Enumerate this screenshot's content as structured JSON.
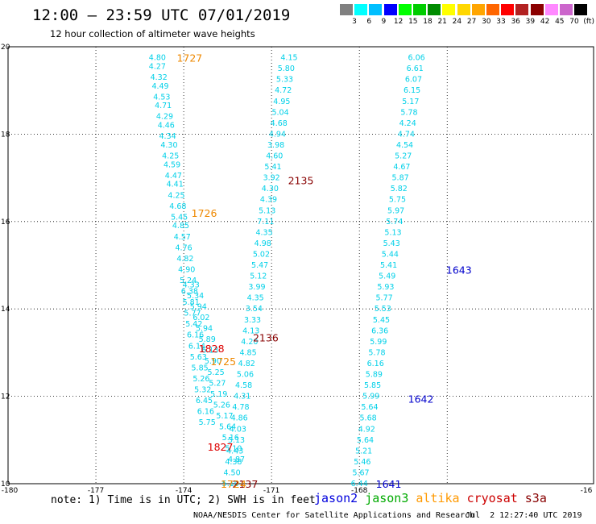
{
  "header": {
    "title": "12:00 – 23:59 UTC 07/01/2019",
    "subtitle": "12 hour collection of altimeter wave heights"
  },
  "color_scale": {
    "labels": [
      "3",
      "6",
      "9",
      "12",
      "15",
      "18",
      "21",
      "24",
      "27",
      "30",
      "33",
      "36",
      "39",
      "42",
      "45",
      "70",
      "(ft)"
    ],
    "colors": [
      "#808080",
      "#00ffff",
      "#00bfff",
      "#0000ff",
      "#00ff00",
      "#00cd00",
      "#008b00",
      "#ffff00",
      "#ffd700",
      "#ffa500",
      "#ff6600",
      "#ff0000",
      "#b22222",
      "#8b0000",
      "#ff88ff",
      "#cc66cc",
      "#000000"
    ]
  },
  "footer": {
    "note": "note: 1) Time is in UTC; 2) SWH is in feet",
    "credit": "NOAA/NESDIS Center for Satellite Applications and Research",
    "timestamp": "Jul  2 12:27:40 UTC 2019"
  },
  "legend": [
    {
      "name": "jason2",
      "color": "#0000dd"
    },
    {
      "name": "jason3",
      "color": "#00aa00"
    },
    {
      "name": "altika",
      "color": "#ff9900"
    },
    {
      "name": "cryosat",
      "color": "#cc0000"
    },
    {
      "name": "s3a",
      "color": "#880000"
    }
  ],
  "chart_data": {
    "type": "scatter",
    "x_ticks": [
      "-180",
      "-177",
      "-174",
      "-171",
      "-168",
      "-16"
    ],
    "y_ticks": [
      "20",
      "18",
      "16",
      "14",
      "12",
      "10"
    ],
    "xlim": [
      -180,
      -160
    ],
    "ylim": [
      10,
      20
    ],
    "grid": true,
    "series": [
      {
        "name": "track-west",
        "color": "#00d0e8",
        "points": [
          {
            "x": -174.9,
            "y": 19.75,
            "v": "4.80"
          },
          {
            "x": -174.9,
            "y": 19.55,
            "v": "4.27"
          },
          {
            "x": -174.85,
            "y": 19.3,
            "v": "4.32"
          },
          {
            "x": -174.8,
            "y": 19.1,
            "v": "4.49"
          },
          {
            "x": -174.75,
            "y": 18.85,
            "v": "4.53"
          },
          {
            "x": -174.7,
            "y": 18.65,
            "v": "4.71"
          },
          {
            "x": -174.65,
            "y": 18.4,
            "v": "4.29"
          },
          {
            "x": -174.6,
            "y": 18.2,
            "v": "4.46"
          },
          {
            "x": -174.55,
            "y": 17.95,
            "v": "4.34"
          },
          {
            "x": -174.5,
            "y": 17.75,
            "v": "4.30"
          },
          {
            "x": -174.45,
            "y": 17.5,
            "v": "4.25"
          },
          {
            "x": -174.4,
            "y": 17.3,
            "v": "4.59"
          },
          {
            "x": -174.35,
            "y": 17.05,
            "v": "4.47"
          },
          {
            "x": -174.3,
            "y": 16.85,
            "v": "4.41"
          },
          {
            "x": -174.25,
            "y": 16.6,
            "v": "4.25"
          },
          {
            "x": -174.2,
            "y": 16.35,
            "v": "4.68"
          },
          {
            "x": -174.15,
            "y": 16.1,
            "v": "5.45"
          },
          {
            "x": -174.1,
            "y": 15.9,
            "v": "4.85"
          },
          {
            "x": -174.05,
            "y": 15.65,
            "v": "4.57"
          },
          {
            "x": -174.0,
            "y": 15.4,
            "v": "4.76"
          },
          {
            "x": -173.95,
            "y": 15.15,
            "v": "4.82"
          },
          {
            "x": -173.9,
            "y": 14.9,
            "v": "4.90"
          },
          {
            "x": -173.85,
            "y": 14.65,
            "v": "5.24"
          },
          {
            "x": -173.8,
            "y": 14.4,
            "v": "6.38"
          },
          {
            "x": -173.75,
            "y": 14.15,
            "v": "5.81"
          },
          {
            "x": -173.7,
            "y": 13.9,
            "v": "5.77"
          },
          {
            "x": -173.65,
            "y": 13.65,
            "v": "5.42"
          },
          {
            "x": -173.6,
            "y": 13.4,
            "v": "6.16"
          },
          {
            "x": -173.55,
            "y": 13.15,
            "v": "6.14"
          },
          {
            "x": -173.5,
            "y": 12.9,
            "v": "5.63"
          },
          {
            "x": -173.45,
            "y": 12.65,
            "v": "5.85"
          },
          {
            "x": -173.4,
            "y": 12.4,
            "v": "5.26"
          },
          {
            "x": -173.35,
            "y": 12.15,
            "v": "5.32"
          },
          {
            "x": -173.3,
            "y": 11.9,
            "v": "6.45"
          },
          {
            "x": -173.25,
            "y": 11.65,
            "v": "6.16"
          },
          {
            "x": -173.2,
            "y": 11.4,
            "v": "5.75"
          }
        ]
      },
      {
        "name": "track-west-b",
        "color": "#00d0e8",
        "points": [
          {
            "x": -173.75,
            "y": 14.55,
            "v": "4.33"
          },
          {
            "x": -173.6,
            "y": 14.3,
            "v": "5.34"
          },
          {
            "x": -173.5,
            "y": 14.05,
            "v": "5.94"
          },
          {
            "x": -173.4,
            "y": 13.8,
            "v": "6.02"
          },
          {
            "x": -173.3,
            "y": 13.55,
            "v": "5.94"
          },
          {
            "x": -173.2,
            "y": 13.3,
            "v": "5.89"
          },
          {
            "x": -173.1,
            "y": 13.05,
            "v": "6.13"
          },
          {
            "x": -173.0,
            "y": 12.8,
            "v": "5.90"
          },
          {
            "x": -172.9,
            "y": 12.55,
            "v": "5.25"
          },
          {
            "x": -172.85,
            "y": 12.3,
            "v": "5.27"
          },
          {
            "x": -172.8,
            "y": 12.05,
            "v": "5.19"
          },
          {
            "x": -172.7,
            "y": 11.8,
            "v": "5.26"
          },
          {
            "x": -172.6,
            "y": 11.55,
            "v": "5.17"
          },
          {
            "x": -172.5,
            "y": 11.3,
            "v": "5.64"
          },
          {
            "x": -172.4,
            "y": 11.05,
            "v": "5.16"
          },
          {
            "x": -172.3,
            "y": 10.8,
            "v": "5.10"
          },
          {
            "x": -172.2,
            "y": 10.55,
            "v": "4.87"
          }
        ]
      },
      {
        "name": "track-center",
        "color": "#00d0e8",
        "points": [
          {
            "x": -170.4,
            "y": 19.75,
            "v": "4.15"
          },
          {
            "x": -170.5,
            "y": 19.5,
            "v": "5.80"
          },
          {
            "x": -170.55,
            "y": 19.25,
            "v": "5.33"
          },
          {
            "x": -170.6,
            "y": 19.0,
            "v": "4.72"
          },
          {
            "x": -170.65,
            "y": 18.75,
            "v": "4.95"
          },
          {
            "x": -170.7,
            "y": 18.5,
            "v": "5.04"
          },
          {
            "x": -170.75,
            "y": 18.25,
            "v": "4.68"
          },
          {
            "x": -170.8,
            "y": 18.0,
            "v": "4.94"
          },
          {
            "x": -170.85,
            "y": 17.75,
            "v": "3.98"
          },
          {
            "x": -170.9,
            "y": 17.5,
            "v": "4.60"
          },
          {
            "x": -170.95,
            "y": 17.25,
            "v": "5.41"
          },
          {
            "x": -171.0,
            "y": 17.0,
            "v": "3.92"
          },
          {
            "x": -171.05,
            "y": 16.75,
            "v": "4.30"
          },
          {
            "x": -171.1,
            "y": 16.5,
            "v": "4.39"
          },
          {
            "x": -171.15,
            "y": 16.25,
            "v": "5.13"
          },
          {
            "x": -171.2,
            "y": 16.0,
            "v": "7.11"
          },
          {
            "x": -171.25,
            "y": 15.75,
            "v": "4.35"
          },
          {
            "x": -171.3,
            "y": 15.5,
            "v": "4.98"
          },
          {
            "x": -171.35,
            "y": 15.25,
            "v": "5.02"
          },
          {
            "x": -171.4,
            "y": 15.0,
            "v": "5.47"
          },
          {
            "x": -171.45,
            "y": 14.75,
            "v": "5.12"
          },
          {
            "x": -171.5,
            "y": 14.5,
            "v": "3.99"
          },
          {
            "x": -171.55,
            "y": 14.25,
            "v": "4.35"
          },
          {
            "x": -171.6,
            "y": 14.0,
            "v": "3.54"
          },
          {
            "x": -171.65,
            "y": 13.75,
            "v": "3.33"
          },
          {
            "x": -171.7,
            "y": 13.5,
            "v": "4.13"
          },
          {
            "x": -171.75,
            "y": 13.25,
            "v": "4.20"
          },
          {
            "x": -171.8,
            "y": 13.0,
            "v": "4.85"
          },
          {
            "x": -171.85,
            "y": 12.75,
            "v": "4.82"
          },
          {
            "x": -171.9,
            "y": 12.5,
            "v": "5.06"
          },
          {
            "x": -171.95,
            "y": 12.25,
            "v": "4.58"
          },
          {
            "x": -172.0,
            "y": 12.0,
            "v": "4.31"
          },
          {
            "x": -172.05,
            "y": 11.75,
            "v": "4.78"
          },
          {
            "x": -172.1,
            "y": 11.5,
            "v": "4.86"
          },
          {
            "x": -172.15,
            "y": 11.25,
            "v": "4.03"
          },
          {
            "x": -172.2,
            "y": 11.0,
            "v": "5.13"
          },
          {
            "x": -172.25,
            "y": 10.75,
            "v": "4.43"
          },
          {
            "x": -172.3,
            "y": 10.5,
            "v": "4.38"
          },
          {
            "x": -172.35,
            "y": 10.25,
            "v": "4.50"
          },
          {
            "x": -172.4,
            "y": 10.0,
            "v": "5.10"
          }
        ]
      },
      {
        "name": "track-east",
        "color": "#00d0e8",
        "points": [
          {
            "x": -168.0,
            "y": 10.0,
            "v": "6.44"
          },
          {
            "x": -167.95,
            "y": 10.25,
            "v": "5.67"
          },
          {
            "x": -167.9,
            "y": 10.5,
            "v": "5.46"
          },
          {
            "x": -167.85,
            "y": 10.75,
            "v": "5.21"
          },
          {
            "x": -167.8,
            "y": 11.0,
            "v": "5.64"
          },
          {
            "x": -167.75,
            "y": 11.25,
            "v": "4.92"
          },
          {
            "x": -167.7,
            "y": 11.5,
            "v": "5.68"
          },
          {
            "x": -167.65,
            "y": 11.75,
            "v": "5.64"
          },
          {
            "x": -167.6,
            "y": 12.0,
            "v": "5.99"
          },
          {
            "x": -167.55,
            "y": 12.25,
            "v": "5.85"
          },
          {
            "x": -167.5,
            "y": 12.5,
            "v": "5.89"
          },
          {
            "x": -167.45,
            "y": 12.75,
            "v": "6.16"
          },
          {
            "x": -167.4,
            "y": 13.0,
            "v": "5.78"
          },
          {
            "x": -167.35,
            "y": 13.25,
            "v": "5.99"
          },
          {
            "x": -167.3,
            "y": 13.5,
            "v": "6.36"
          },
          {
            "x": -167.25,
            "y": 13.75,
            "v": "5.45"
          },
          {
            "x": -167.2,
            "y": 14.0,
            "v": "5.53"
          },
          {
            "x": -167.15,
            "y": 14.25,
            "v": "5.77"
          },
          {
            "x": -167.1,
            "y": 14.5,
            "v": "5.93"
          },
          {
            "x": -167.05,
            "y": 14.75,
            "v": "5.49"
          },
          {
            "x": -167.0,
            "y": 15.0,
            "v": "5.41"
          },
          {
            "x": -166.95,
            "y": 15.25,
            "v": "5.44"
          },
          {
            "x": -166.9,
            "y": 15.5,
            "v": "5.43"
          },
          {
            "x": -166.85,
            "y": 15.75,
            "v": "5.13"
          },
          {
            "x": -166.8,
            "y": 16.0,
            "v": "5.74"
          },
          {
            "x": -166.75,
            "y": 16.25,
            "v": "5.97"
          },
          {
            "x": -166.7,
            "y": 16.5,
            "v": "5.75"
          },
          {
            "x": -166.65,
            "y": 16.75,
            "v": "5.82"
          },
          {
            "x": -166.6,
            "y": 17.0,
            "v": "5.87"
          },
          {
            "x": -166.55,
            "y": 17.25,
            "v": "4.67"
          },
          {
            "x": -166.5,
            "y": 17.5,
            "v": "5.27"
          },
          {
            "x": -166.45,
            "y": 17.75,
            "v": "4.54"
          },
          {
            "x": -166.4,
            "y": 18.0,
            "v": "4.74"
          },
          {
            "x": -166.35,
            "y": 18.25,
            "v": "4.24"
          },
          {
            "x": -166.3,
            "y": 18.5,
            "v": "5.78"
          },
          {
            "x": -166.25,
            "y": 18.75,
            "v": "5.17"
          },
          {
            "x": -166.2,
            "y": 19.0,
            "v": "6.15"
          },
          {
            "x": -166.15,
            "y": 19.25,
            "v": "6.07"
          },
          {
            "x": -166.1,
            "y": 19.5,
            "v": "6.61"
          },
          {
            "x": -166.05,
            "y": 19.75,
            "v": "6.06"
          }
        ]
      }
    ],
    "time_labels": [
      {
        "text": "1727",
        "color": "#ee8800",
        "x": -173.8,
        "y": 19.75
      },
      {
        "text": "1726",
        "color": "#ee8800",
        "x": -173.3,
        "y": 16.2
      },
      {
        "text": "1725",
        "color": "#ee8800",
        "x": -172.65,
        "y": 12.8
      },
      {
        "text": "1828",
        "color": "#dd0000",
        "x": -173.05,
        "y": 13.1
      },
      {
        "text": "1827",
        "color": "#dd0000",
        "x": -172.75,
        "y": 10.85
      },
      {
        "text": "2135",
        "color": "#880000",
        "x": -170.0,
        "y": 16.95
      },
      {
        "text": "2136",
        "color": "#880000",
        "x": -171.2,
        "y": 13.35
      },
      {
        "text": "2137",
        "color": "#880000",
        "x": -171.9,
        "y": 10.0
      },
      {
        "text": "1724",
        "color": "#ee8800",
        "x": -172.3,
        "y": 10.0
      },
      {
        "text": "1643",
        "color": "#0000cc",
        "x": -164.6,
        "y": 14.9
      },
      {
        "text": "1642",
        "color": "#0000cc",
        "x": -165.9,
        "y": 11.95
      },
      {
        "text": "1641",
        "color": "#0000cc",
        "x": -167.0,
        "y": 10.0
      }
    ]
  }
}
